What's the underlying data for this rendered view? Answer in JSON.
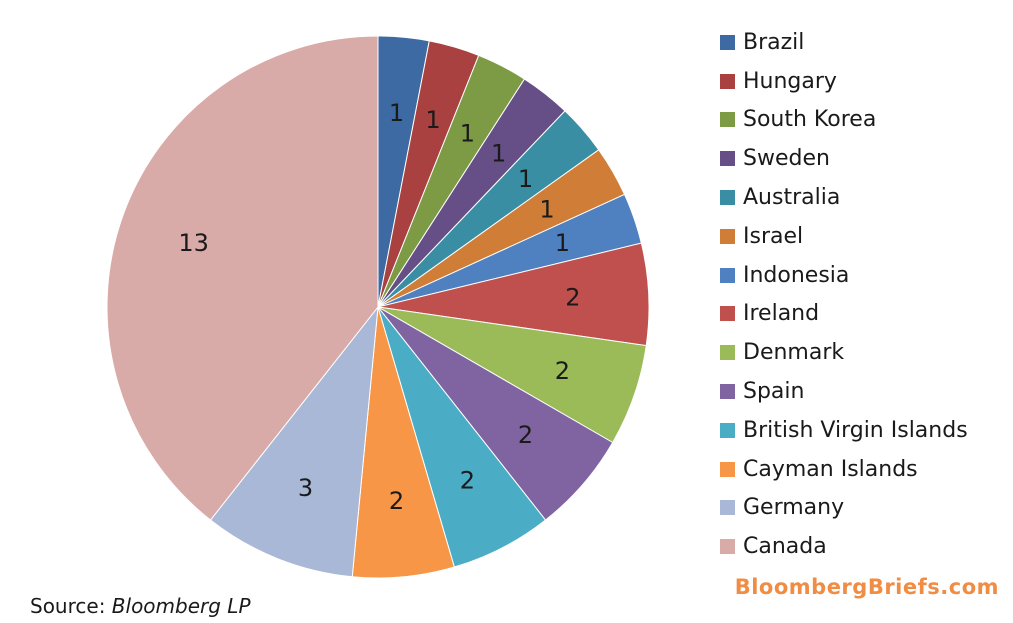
{
  "chart_data": {
    "type": "pie",
    "title": "",
    "start_angle": "12 o'clock, clockwise",
    "legend_position": "right",
    "slices": [
      {
        "label": "Brazil",
        "value": 1,
        "color": "#3d6aa2"
      },
      {
        "label": "Hungary",
        "value": 1,
        "color": "#a8413f"
      },
      {
        "label": "South Korea",
        "value": 1,
        "color": "#7d9a45"
      },
      {
        "label": "Sweden",
        "value": 1,
        "color": "#654f86"
      },
      {
        "label": "Australia",
        "value": 1,
        "color": "#3a8ea3"
      },
      {
        "label": "Israel",
        "value": 1,
        "color": "#d07d37"
      },
      {
        "label": "Indonesia",
        "value": 1,
        "color": "#4f81c0"
      },
      {
        "label": "Ireland",
        "value": 2,
        "color": "#c0504d"
      },
      {
        "label": "Denmark",
        "value": 2,
        "color": "#9bbb59"
      },
      {
        "label": "Spain",
        "value": 2,
        "color": "#8064a2"
      },
      {
        "label": "British Virgin Islands",
        "value": 2,
        "color": "#4bacc6"
      },
      {
        "label": "Cayman Islands",
        "value": 2,
        "color": "#f79646"
      },
      {
        "label": "Germany",
        "value": 3,
        "color": "#a9b8d7"
      },
      {
        "label": "Canada",
        "value": 13,
        "color": "#d8aaa8"
      }
    ]
  },
  "source": {
    "prefix": "Source: ",
    "name": "Bloomberg LP"
  },
  "brand": "BloombergBriefs.com"
}
